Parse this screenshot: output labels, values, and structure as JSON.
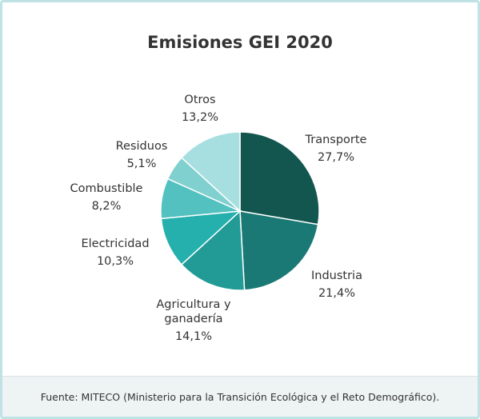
{
  "chart_data": {
    "type": "pie",
    "title": "Emisiones GEI 2020",
    "slices": [
      {
        "label": "Transporte",
        "value": 27.7,
        "display": "27,7%",
        "color": "#12564f"
      },
      {
        "label": "Industria",
        "value": 21.4,
        "display": "21,4%",
        "color": "#1b7975"
      },
      {
        "label": "Agricultura y ganadería",
        "label_lines": [
          "Agricultura y",
          "ganadería"
        ],
        "value": 14.1,
        "display": "14,1%",
        "color": "#229b96"
      },
      {
        "label": "Electricidad",
        "value": 10.3,
        "display": "10,3%",
        "color": "#25b0ad"
      },
      {
        "label": "Combustible",
        "value": 8.2,
        "display": "8,2%",
        "color": "#52c1bf"
      },
      {
        "label": "Residuos",
        "value": 5.1,
        "display": "5,1%",
        "color": "#80d0cf"
      },
      {
        "label": "Otros",
        "value": 13.2,
        "display": "13,2%",
        "color": "#a7dfe0"
      }
    ]
  },
  "footer": {
    "source": "Fuente: MITECO (Ministerio para la Transición Ecológica y el Reto Demográfico)."
  }
}
